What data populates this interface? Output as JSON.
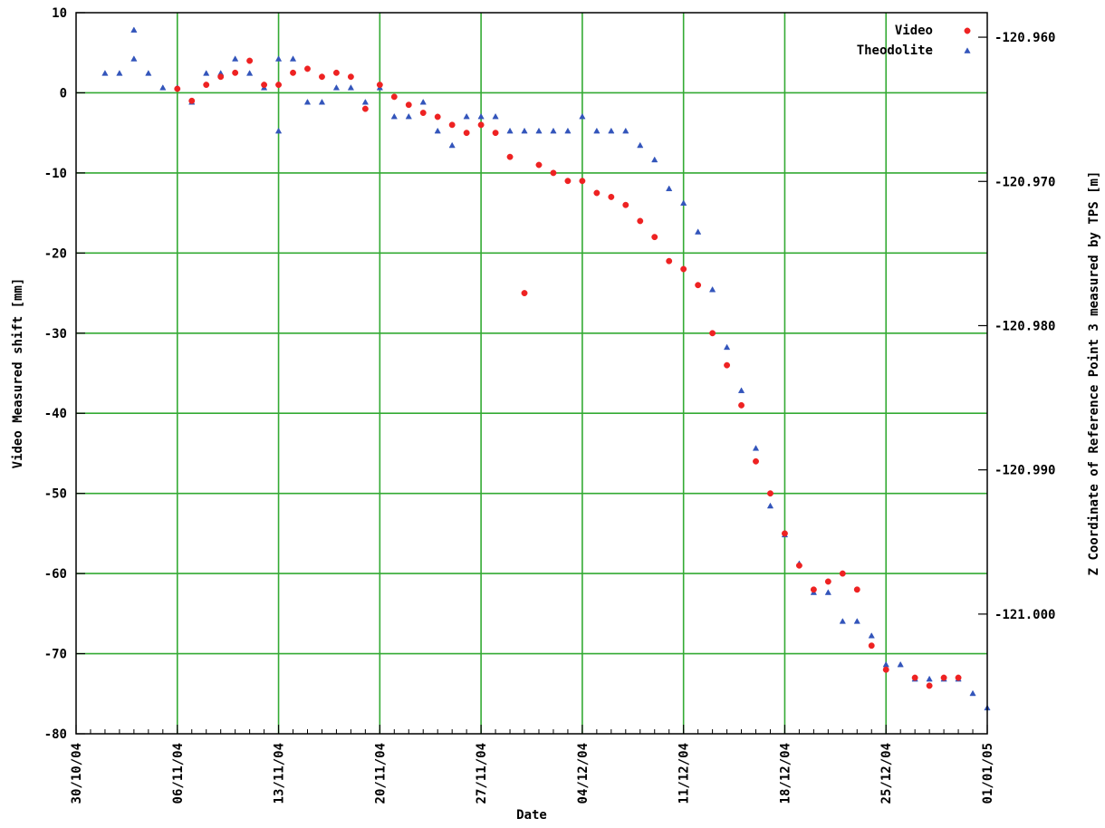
{
  "chart_data": {
    "type": "scatter",
    "xlabel": "Date",
    "ylabel": "Video Measured shift [mm]",
    "y2label": "Z Coordinate of Reference Point 3 measured by TPS [m]",
    "x_range": [
      "30/10/04",
      "01/01/05"
    ],
    "x_ticks": [
      "30/10/04",
      "06/11/04",
      "13/11/04",
      "20/11/04",
      "27/11/04",
      "04/12/04",
      "11/12/04",
      "18/12/04",
      "25/12/04",
      "01/01/05"
    ],
    "ylim": [
      -80,
      10
    ],
    "y_ticks": [
      "10",
      "0",
      "-10",
      "-20",
      "-30",
      "-40",
      "-50",
      "-60",
      "-70",
      "-80"
    ],
    "y2lim": [
      -121.0083,
      -120.9583
    ],
    "y2_ticks": [
      "-120.960",
      "-120.970",
      "-120.980",
      "-120.990",
      "-121.000"
    ],
    "grid": true,
    "grid_color": "#33aa33",
    "legend_position": "top-right",
    "series": [
      {
        "name": "Video",
        "color": "#ee2222",
        "marker": "circle",
        "axis": "left",
        "points": [
          [
            "06/11/04",
            0.5
          ],
          [
            "07/11/04",
            -1.0
          ],
          [
            "08/11/04",
            1.0
          ],
          [
            "09/11/04",
            2.0
          ],
          [
            "10/11/04",
            2.5
          ],
          [
            "11/11/04",
            4.0
          ],
          [
            "12/11/04",
            1.0
          ],
          [
            "13/11/04",
            1.0
          ],
          [
            "14/11/04",
            2.5
          ],
          [
            "15/11/04",
            3.0
          ],
          [
            "16/11/04",
            2.0
          ],
          [
            "17/11/04",
            2.5
          ],
          [
            "18/11/04",
            2.0
          ],
          [
            "19/11/04",
            -2.0
          ],
          [
            "20/11/04",
            1.0
          ],
          [
            "21/11/04",
            -0.5
          ],
          [
            "22/11/04",
            -1.5
          ],
          [
            "23/11/04",
            -2.5
          ],
          [
            "24/11/04",
            -3.0
          ],
          [
            "25/11/04",
            -4.0
          ],
          [
            "26/11/04",
            -5.0
          ],
          [
            "27/11/04",
            -4.0
          ],
          [
            "28/11/04",
            -5.0
          ],
          [
            "29/11/04",
            -8.0
          ],
          [
            "30/11/04",
            -25.0
          ],
          [
            "01/12/04",
            -9.0
          ],
          [
            "02/12/04",
            -10.0
          ],
          [
            "03/12/04",
            -11.0
          ],
          [
            "04/12/04",
            -11.0
          ],
          [
            "05/12/04",
            -12.5
          ],
          [
            "06/12/04",
            -13.0
          ],
          [
            "07/12/04",
            -14.0
          ],
          [
            "08/12/04",
            -16.0
          ],
          [
            "09/12/04",
            -18.0
          ],
          [
            "10/12/04",
            -21.0
          ],
          [
            "11/12/04",
            -22.0
          ],
          [
            "12/12/04",
            -24.0
          ],
          [
            "13/12/04",
            -30.0
          ],
          [
            "14/12/04",
            -34.0
          ],
          [
            "15/12/04",
            -39.0
          ],
          [
            "16/12/04",
            -46.0
          ],
          [
            "17/12/04",
            -50.0
          ],
          [
            "18/12/04",
            -55.0
          ],
          [
            "19/12/04",
            -59.0
          ],
          [
            "20/12/04",
            -62.0
          ],
          [
            "21/12/04",
            -61.0
          ],
          [
            "22/12/04",
            -60.0
          ],
          [
            "23/12/04",
            -62.0
          ],
          [
            "24/12/04",
            -69.0
          ],
          [
            "25/12/04",
            -72.0
          ],
          [
            "27/12/04",
            -73.0
          ],
          [
            "28/12/04",
            -74.0
          ],
          [
            "29/12/04",
            -73.0
          ],
          [
            "30/12/04",
            -73.0
          ]
        ]
      },
      {
        "name": "Theodolite",
        "color": "#3355bb",
        "marker": "triangle",
        "axis": "right",
        "points": [
          [
            "01/11/04",
            -120.9625
          ],
          [
            "02/11/04",
            -120.9625
          ],
          [
            "03/11/04",
            -120.9615
          ],
          [
            "03/11/04",
            -120.9595
          ],
          [
            "04/11/04",
            -120.9625
          ],
          [
            "05/11/04",
            -120.9635
          ],
          [
            "06/11/04",
            -120.9635
          ],
          [
            "07/11/04",
            -120.9645
          ],
          [
            "08/11/04",
            -120.9625
          ],
          [
            "09/11/04",
            -120.9625
          ],
          [
            "10/11/04",
            -120.9615
          ],
          [
            "11/11/04",
            -120.9625
          ],
          [
            "12/11/04",
            -120.9635
          ],
          [
            "13/11/04",
            -120.9665
          ],
          [
            "13/11/04",
            -120.9615
          ],
          [
            "14/11/04",
            -120.9615
          ],
          [
            "15/11/04",
            -120.9645
          ],
          [
            "16/11/04",
            -120.9645
          ],
          [
            "17/11/04",
            -120.9635
          ],
          [
            "18/11/04",
            -120.9635
          ],
          [
            "19/11/04",
            -120.9645
          ],
          [
            "20/11/04",
            -120.9635
          ],
          [
            "21/11/04",
            -120.9655
          ],
          [
            "22/11/04",
            -120.9655
          ],
          [
            "23/11/04",
            -120.9645
          ],
          [
            "24/11/04",
            -120.9665
          ],
          [
            "25/11/04",
            -120.9675
          ],
          [
            "26/11/04",
            -120.9655
          ],
          [
            "27/11/04",
            -120.9655
          ],
          [
            "28/11/04",
            -120.9655
          ],
          [
            "29/11/04",
            -120.9665
          ],
          [
            "30/11/04",
            -120.9665
          ],
          [
            "01/12/04",
            -120.9665
          ],
          [
            "02/12/04",
            -120.9665
          ],
          [
            "03/12/04",
            -120.9665
          ],
          [
            "04/12/04",
            -120.9655
          ],
          [
            "05/12/04",
            -120.9665
          ],
          [
            "06/12/04",
            -120.9665
          ],
          [
            "07/12/04",
            -120.9665
          ],
          [
            "08/12/04",
            -120.9675
          ],
          [
            "09/12/04",
            -120.9685
          ],
          [
            "10/12/04",
            -120.9705
          ],
          [
            "11/12/04",
            -120.9715
          ],
          [
            "12/12/04",
            -120.9735
          ],
          [
            "13/12/04",
            -120.9775
          ],
          [
            "14/12/04",
            -120.9815
          ],
          [
            "15/12/04",
            -120.9845
          ],
          [
            "16/12/04",
            -120.9885
          ],
          [
            "17/12/04",
            -120.9925
          ],
          [
            "18/12/04",
            -120.9945
          ],
          [
            "19/12/04",
            -120.9965
          ],
          [
            "20/12/04",
            -120.9985
          ],
          [
            "21/12/04",
            -120.9985
          ],
          [
            "22/12/04",
            -121.0005
          ],
          [
            "23/12/04",
            -121.0005
          ],
          [
            "24/12/04",
            -121.0015
          ],
          [
            "25/12/04",
            -121.0035
          ],
          [
            "26/12/04",
            -121.0035
          ],
          [
            "27/12/04",
            -121.0045
          ],
          [
            "28/12/04",
            -121.0045
          ],
          [
            "29/12/04",
            -121.0045
          ],
          [
            "30/12/04",
            -121.0045
          ],
          [
            "31/12/04",
            -121.0055
          ],
          [
            "01/01/05",
            -121.0065
          ]
        ]
      }
    ]
  }
}
